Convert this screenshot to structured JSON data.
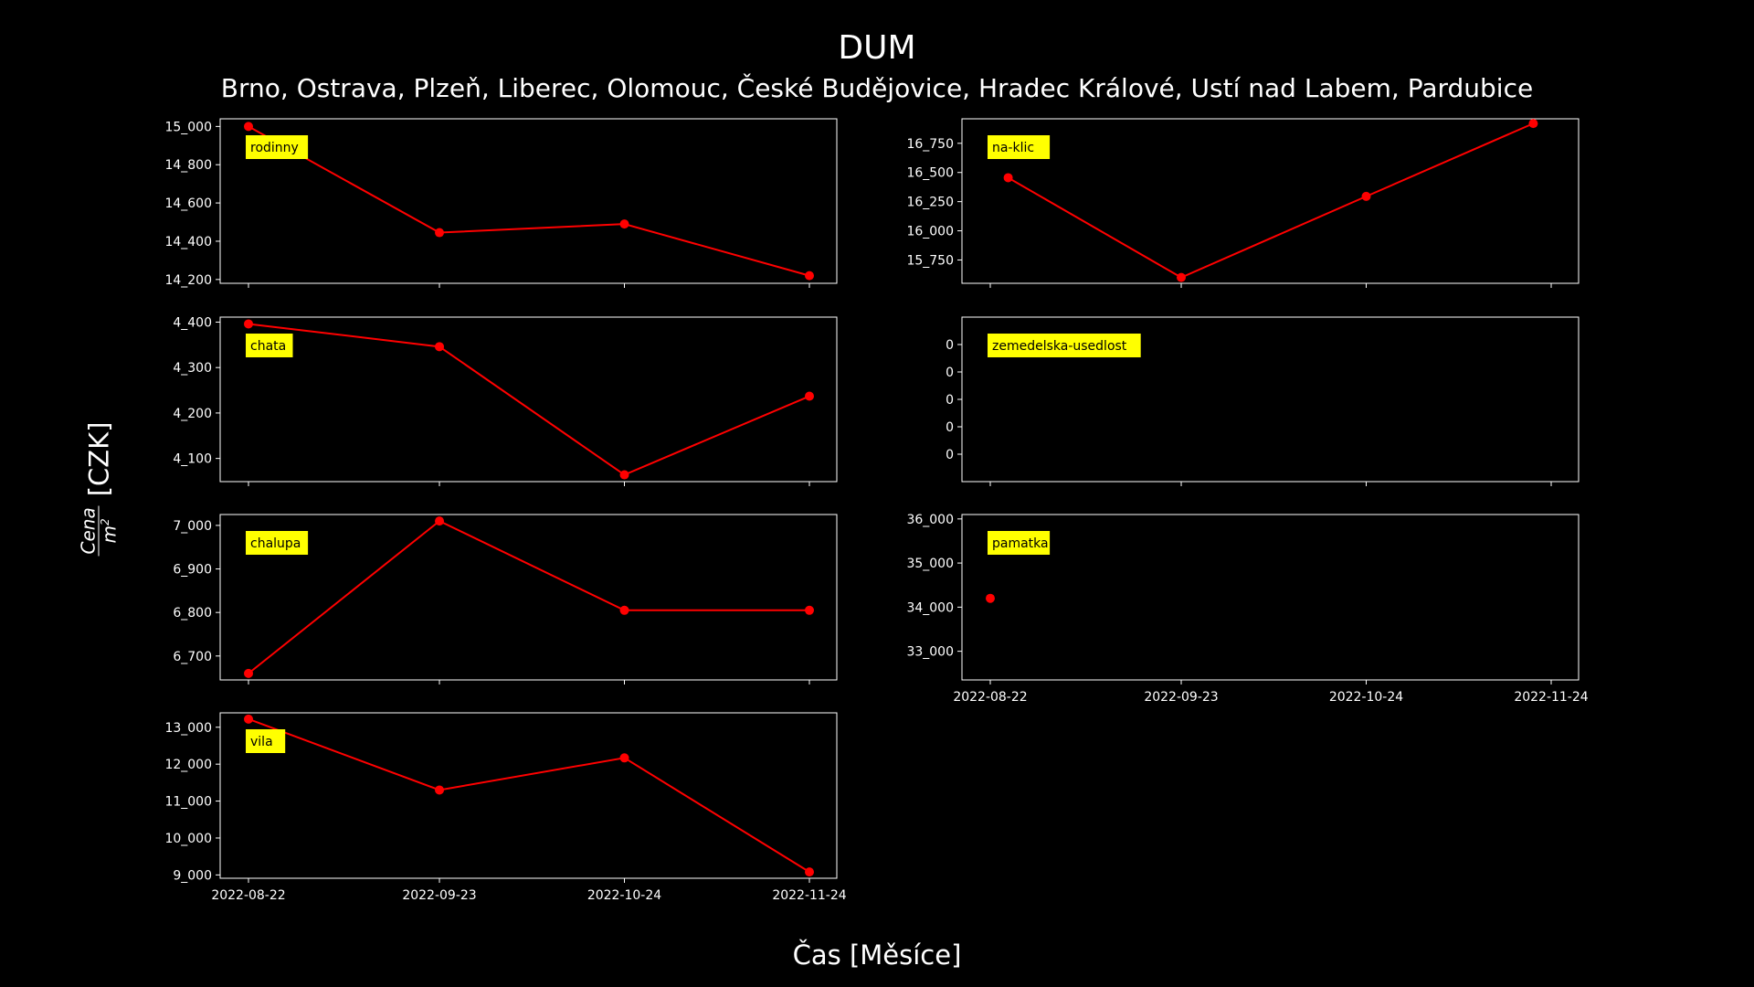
{
  "chart_data": {
    "title": "DUM",
    "subtitle": "Brno, Ostrava, Plzeň, Liberec, Olomouc, České Budějovice, Hradec Králové, Ustí nad Labem, Pardubice",
    "xlabel": "Čas [Měsíce]",
    "ylabel_suffix": "[CZK]",
    "ylabel_fraction": {
      "numerator": "Cena",
      "denominator": "m",
      "exponent": "2"
    },
    "line_color": "#ff0000",
    "label_bg_color": "#ffff00",
    "x_ticks": [
      "2022-08-22",
      "2022-09-23",
      "2022-10-24",
      "2022-11-24"
    ],
    "panels": [
      {
        "type": "line",
        "label": "rodinny",
        "x": [
          "2022-08-22",
          "2022-09-23",
          "2022-10-24",
          "2022-11-24"
        ],
        "values": [
          15000,
          14445,
          14490,
          14220
        ],
        "ylim": [
          14180,
          15040
        ],
        "yticks": [
          14200,
          14400,
          14600,
          14800,
          15000
        ],
        "ytick_labels": [
          "14_200",
          "14_400",
          "14_600",
          "14_800",
          "15_000"
        ]
      },
      {
        "type": "line",
        "label": "na-klic",
        "x": [
          "2022-08-25",
          "2022-09-23",
          "2022-10-24",
          "2022-11-21"
        ],
        "values": [
          16455,
          15600,
          16295,
          16920
        ],
        "ylim": [
          15550,
          16960
        ],
        "yticks": [
          15750,
          16000,
          16250,
          16500,
          16750
        ],
        "ytick_labels": [
          "15_750",
          "16_000",
          "16_250",
          "16_500",
          "16_750"
        ]
      },
      {
        "type": "line",
        "label": "chata",
        "x": [
          "2022-08-22",
          "2022-09-23",
          "2022-10-24",
          "2022-11-24"
        ],
        "values": [
          4396,
          4346,
          4064,
          4237
        ],
        "ylim": [
          4049,
          4411
        ],
        "yticks": [
          4100,
          4200,
          4300,
          4400
        ],
        "ytick_labels": [
          "4_100",
          "4_200",
          "4_300",
          "4_400"
        ]
      },
      {
        "type": "line",
        "label": "zemedelska-usedlost",
        "x": [],
        "values": [],
        "ylim": [
          -0.06,
          0.06
        ],
        "yticks": [
          -0.04,
          -0.02,
          0,
          0.02,
          0.04
        ],
        "ytick_labels": [
          "0",
          "0",
          "0",
          "0",
          "0"
        ]
      },
      {
        "type": "line",
        "label": "chalupa",
        "x": [
          "2022-08-22",
          "2022-09-23",
          "2022-10-24",
          "2022-11-24"
        ],
        "values": [
          6660,
          7010,
          6805,
          6805
        ],
        "ylim": [
          6645,
          7025
        ],
        "yticks": [
          6700,
          6800,
          6900,
          7000
        ],
        "ytick_labels": [
          "6_700",
          "6_800",
          "6_900",
          "7_000"
        ]
      },
      {
        "type": "scatter",
        "label": "pamatka",
        "x": [
          "2022-08-22"
        ],
        "values": [
          34200
        ],
        "ylim": [
          32350,
          36100
        ],
        "yticks": [
          33000,
          34000,
          35000,
          36000
        ],
        "ytick_labels": [
          "33_000",
          "34_000",
          "35_000",
          "36_000"
        ],
        "x_tick_labels_visible": true
      },
      {
        "type": "line",
        "label": "vila",
        "x": [
          "2022-08-22",
          "2022-09-23",
          "2022-10-24",
          "2022-11-24"
        ],
        "values": [
          13220,
          11300,
          12170,
          9080
        ],
        "ylim": [
          8910,
          13390
        ],
        "yticks": [
          9000,
          10000,
          11000,
          12000,
          13000
        ],
        "ytick_labels": [
          "9_000",
          "10_000",
          "11_000",
          "12_000",
          "13_000"
        ],
        "x_tick_labels_visible": true
      }
    ]
  }
}
